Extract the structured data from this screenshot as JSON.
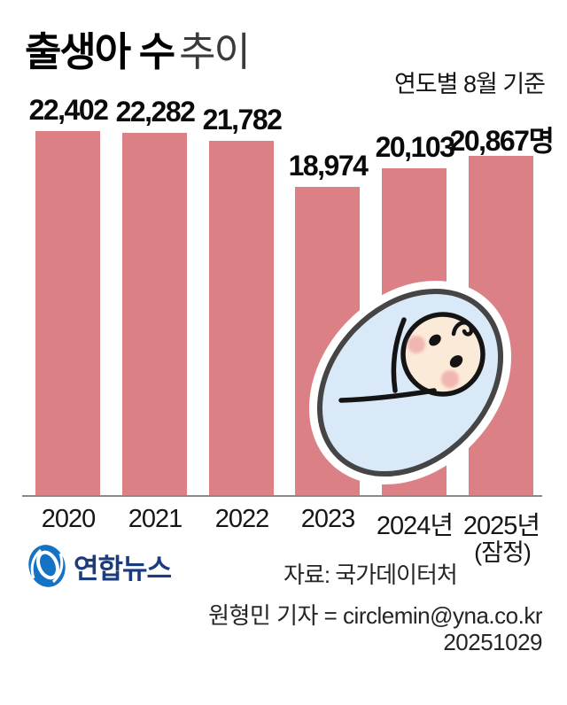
{
  "header": {
    "title_strong": "출생아 수",
    "title_light": "추이",
    "subtitle": "연도별 8월 기준"
  },
  "chart_data": {
    "type": "bar",
    "title": "출생아 수 추이",
    "subtitle": "연도별 8월 기준",
    "categories": [
      "2020",
      "2021",
      "2022",
      "2023",
      "2024년",
      "2025년"
    ],
    "values": [
      22402,
      22282,
      21782,
      18974,
      20103,
      20867
    ],
    "value_labels": [
      "22,402",
      "22,282",
      "21,782",
      "18,974",
      "20,103",
      "20,867명"
    ],
    "last_category_note": "(잠정)",
    "unit": "명",
    "ylim": [
      0,
      22402
    ],
    "grid": false,
    "legend": false,
    "bar_color": "#db8085",
    "axis_line_color": "#8a8a8a"
  },
  "illustration": {
    "name": "swaddled-baby",
    "blanket_color": "#d9e9f7",
    "blanket_outline_color": "#454545",
    "white_ring_color": "#ffffff",
    "face_color": "#fcead9",
    "line_color": "#141414",
    "cheek_color": "#eeaaa5"
  },
  "footer": {
    "logo_text": "연합뉴스",
    "logo_blue": "#1573c5",
    "logo_navy": "#1a3c7d",
    "source": "자료: 국가데이터처",
    "credit": "원형민 기자 = circlemin@yna.co.kr",
    "date": "20251029"
  }
}
